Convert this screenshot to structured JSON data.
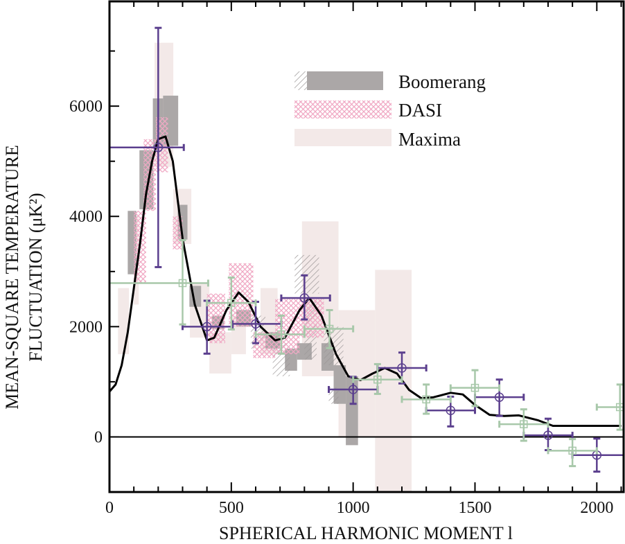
{
  "chart_data": {
    "type": "scatter",
    "xlabel": "SPHERICAL HARMONIC MOMENT l",
    "ylabel_line1": "MEAN-SQUARE TEMPERATURE",
    "ylabel_line2": "FLUCTUATION (μK²)",
    "xlim": [
      0,
      2110
    ],
    "ylim": [
      -1000,
      7900
    ],
    "x_ticks": [
      0,
      500,
      1000,
      1500,
      2000
    ],
    "y_ticks": [
      0,
      2000,
      4000,
      6000
    ],
    "grid": false,
    "legend_position": "top-right",
    "legend": [
      {
        "name": "Boomerang",
        "color": "#aba7a7"
      },
      {
        "name": "DASI",
        "color": "#f0a8c4"
      },
      {
        "name": "Maxima",
        "color": "#f3e9e8"
      }
    ],
    "boxes": {
      "Maxima": [
        {
          "l": [
            35,
            80
          ],
          "v": [
            1500,
            2700
          ]
        },
        {
          "l": [
            100,
            120
          ],
          "v": [
            2400,
            4000
          ]
        },
        {
          "l": [
            185,
            262
          ],
          "v": [
            4900,
            7150
          ]
        },
        {
          "l": [
            262,
            336
          ],
          "v": [
            3500,
            4500
          ]
        },
        {
          "l": [
            330,
            410
          ],
          "v": [
            1800,
            2800
          ]
        },
        {
          "l": [
            410,
            500
          ],
          "v": [
            1150,
            1900
          ]
        },
        {
          "l": [
            500,
            560
          ],
          "v": [
            1500,
            2200
          ]
        },
        {
          "l": [
            620,
            690
          ],
          "v": [
            1500,
            2700
          ]
        },
        {
          "l": [
            790,
            940
          ],
          "v": [
            1100,
            3910
          ]
        },
        {
          "l": [
            940,
            1090
          ],
          "v": [
            0,
            2300
          ]
        },
        {
          "l": [
            1090,
            1240
          ],
          "v": [
            -1000,
            3030
          ]
        }
      ],
      "Boomerang": [
        {
          "l": [
            75,
            110
          ],
          "v": [
            2950,
            4100
          ]
        },
        {
          "l": [
            123,
            180
          ],
          "v": [
            4130,
            5200
          ]
        },
        {
          "l": [
            178,
            220
          ],
          "v": [
            5250,
            6140
          ]
        },
        {
          "l": [
            220,
            282
          ],
          "v": [
            5280,
            6190
          ]
        },
        {
          "l": [
            280,
            320
          ],
          "v": [
            3580,
            4210
          ]
        },
        {
          "l": [
            328,
            376
          ],
          "v": [
            2360,
            2740
          ]
        },
        {
          "l": [
            420,
            470
          ],
          "v": [
            1950,
            2200
          ]
        },
        {
          "l": [
            520,
            580
          ],
          "v": [
            2000,
            2300
          ]
        },
        {
          "l": [
            640,
            700
          ],
          "v": [
            1600,
            1900
          ]
        },
        {
          "l": [
            720,
            770
          ],
          "v": [
            1200,
            1600
          ]
        },
        {
          "l": [
            770,
            830
          ],
          "v": [
            1400,
            1700
          ]
        },
        {
          "l": [
            870,
            920
          ],
          "v": [
            1200,
            1700
          ]
        },
        {
          "l": [
            920,
            970
          ],
          "v": [
            600,
            1300
          ]
        },
        {
          "l": [
            970,
            1020
          ],
          "v": [
            -150,
            1100
          ]
        }
      ],
      "Boomerang_hatched": [
        {
          "l": [
            580,
            640
          ],
          "v": [
            1600,
            2200
          ]
        },
        {
          "l": [
            670,
            740
          ],
          "v": [
            1100,
            1700
          ]
        },
        {
          "l": [
            760,
            860
          ],
          "v": [
            2600,
            3300
          ]
        },
        {
          "l": [
            800,
            850
          ],
          "v": [
            1400,
            2500
          ]
        },
        {
          "l": [
            880,
            960
          ],
          "v": [
            1300,
            2000
          ]
        },
        {
          "l": [
            900,
            940
          ],
          "v": [
            600,
            900
          ]
        }
      ],
      "DASI": [
        {
          "l": [
            100,
            150
          ],
          "v": [
            2800,
            4100
          ]
        },
        {
          "l": [
            140,
            190
          ],
          "v": [
            4100,
            5400
          ]
        },
        {
          "l": [
            190,
            240
          ],
          "v": [
            4800,
            5800
          ]
        },
        {
          "l": [
            260,
            300
          ],
          "v": [
            3400,
            4000
          ]
        },
        {
          "l": [
            400,
            475
          ],
          "v": [
            1700,
            2600
          ]
        },
        {
          "l": [
            490,
            590
          ],
          "v": [
            2000,
            3150
          ]
        },
        {
          "l": [
            590,
            680
          ],
          "v": [
            1430,
            1900
          ]
        },
        {
          "l": [
            680,
            780
          ],
          "v": [
            1500,
            2500
          ]
        },
        {
          "l": [
            780,
            880
          ],
          "v": [
            1800,
            2500
          ]
        }
      ]
    },
    "series": [
      {
        "color": "#5b3f8e",
        "marker": "circle",
        "points": [
          {
            "l": 200,
            "v": 5250,
            "l_err": [
              0,
              305
            ],
            "v_err": [
              3080,
              7420
            ]
          },
          {
            "l": 400,
            "v": 2000,
            "l_err": [
              300,
              505
            ],
            "v_err": [
              1510,
              2470
            ]
          },
          {
            "l": 600,
            "v": 2050,
            "l_err": [
              505,
              705
            ],
            "v_err": [
              1700,
              2450
            ]
          },
          {
            "l": 800,
            "v": 2520,
            "l_err": [
              705,
              905
            ],
            "v_err": [
              2130,
              2930
            ]
          },
          {
            "l": 1000,
            "v": 860,
            "l_err": [
              900,
              1100
            ],
            "v_err": [
              600,
              1090
            ]
          },
          {
            "l": 1200,
            "v": 1250,
            "l_err": [
              1100,
              1300
            ],
            "v_err": [
              970,
              1530
            ]
          },
          {
            "l": 1400,
            "v": 480,
            "l_err": [
              1300,
              1500
            ],
            "v_err": [
              190,
              730
            ]
          },
          {
            "l": 1600,
            "v": 720,
            "l_err": [
              1500,
              1700
            ],
            "v_err": [
              380,
              1040
            ]
          },
          {
            "l": 1800,
            "v": 30,
            "l_err": [
              1700,
              1900
            ],
            "v_err": [
              -240,
              330
            ]
          },
          {
            "l": 2000,
            "v": -330,
            "l_err": [
              1900,
              2110
            ],
            "v_err": [
              -630,
              -30
            ]
          }
        ]
      },
      {
        "color": "#a8c8aa",
        "marker": "square",
        "points": [
          {
            "l": 300,
            "v": 2790,
            "l_err": [
              0,
              405
            ],
            "v_err": [
              2040,
              3570
            ]
          },
          {
            "l": 500,
            "v": 2430,
            "l_err": [
              400,
              600
            ],
            "v_err": [
              1950,
              2890
            ]
          },
          {
            "l": 705,
            "v": 1860,
            "l_err": [
              600,
              800
            ],
            "v_err": [
              1510,
              2200
            ]
          },
          {
            "l": 903,
            "v": 1960,
            "l_err": [
              800,
              1000
            ],
            "v_err": [
              1610,
              2300
            ]
          },
          {
            "l": 1100,
            "v": 1040,
            "l_err": [
              1000,
              1200
            ],
            "v_err": [
              780,
              1320
            ]
          },
          {
            "l": 1300,
            "v": 680,
            "l_err": [
              1200,
              1400
            ],
            "v_err": [
              420,
              950
            ]
          },
          {
            "l": 1500,
            "v": 890,
            "l_err": [
              1400,
              1600
            ],
            "v_err": [
              560,
              1210
            ]
          },
          {
            "l": 1700,
            "v": 230,
            "l_err": [
              1600,
              1800
            ],
            "v_err": [
              -70,
              500
            ]
          },
          {
            "l": 1900,
            "v": -250,
            "l_err": [
              1800,
              2000
            ],
            "v_err": [
              -530,
              -40
            ]
          },
          {
            "l": 2095,
            "v": 540,
            "l_err": [
              2000,
              2110
            ],
            "v_err": [
              130,
              950
            ]
          }
        ]
      }
    ],
    "theory_curve": {
      "color": "#000000",
      "l": [
        0,
        25,
        50,
        75,
        100,
        125,
        150,
        175,
        200,
        230,
        260,
        300,
        350,
        400,
        430,
        480,
        530,
        570,
        620,
        680,
        720,
        780,
        820,
        870,
        930,
        980,
        1030,
        1080,
        1130,
        1180,
        1230,
        1280,
        1330,
        1400,
        1450,
        1500,
        1560,
        1620,
        1680,
        1760,
        1820,
        1900,
        2000,
        2100
      ],
      "v": [
        820,
        950,
        1300,
        1900,
        2700,
        3500,
        4400,
        5000,
        5400,
        5450,
        5000,
        3600,
        2400,
        1750,
        1800,
        2300,
        2620,
        2450,
        2000,
        1750,
        1800,
        2300,
        2520,
        2200,
        1500,
        1100,
        1030,
        1150,
        1250,
        1150,
        850,
        700,
        720,
        800,
        770,
        580,
        400,
        380,
        390,
        300,
        200,
        200,
        200,
        200
      ]
    }
  }
}
